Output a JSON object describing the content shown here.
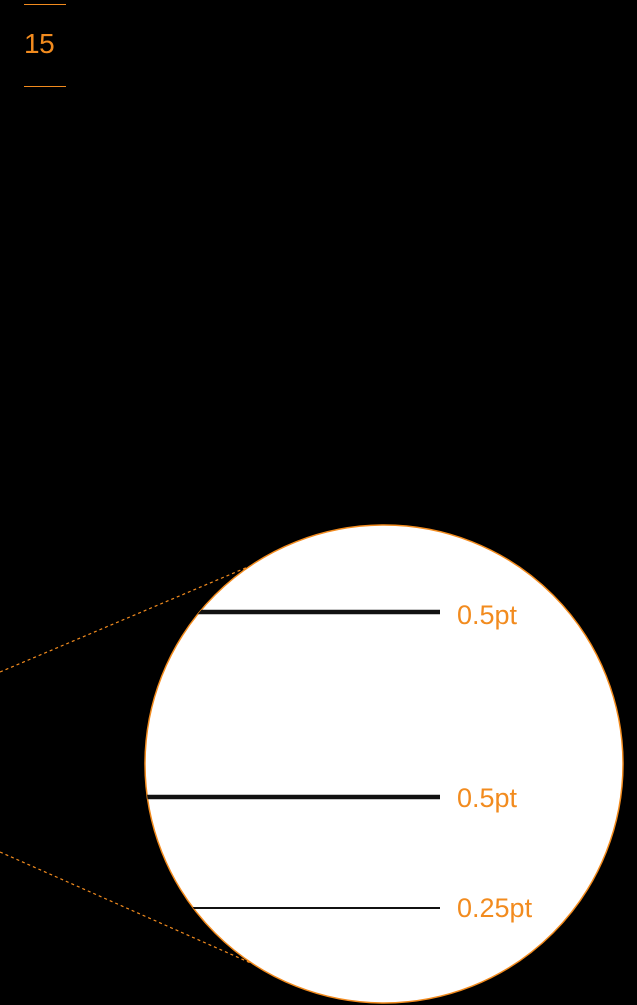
{
  "page": {
    "number": "15"
  },
  "colors": {
    "background": "#000000",
    "accent": "#F28B1E",
    "magnifier_fill": "#FFFFFF",
    "line": "#111111"
  },
  "magnifier": {
    "lines": [
      {
        "label": "0.5pt",
        "weight_pt": 0.5
      },
      {
        "label": "0.5pt",
        "weight_pt": 0.5
      },
      {
        "label": "0.25pt",
        "weight_pt": 0.25
      }
    ]
  }
}
